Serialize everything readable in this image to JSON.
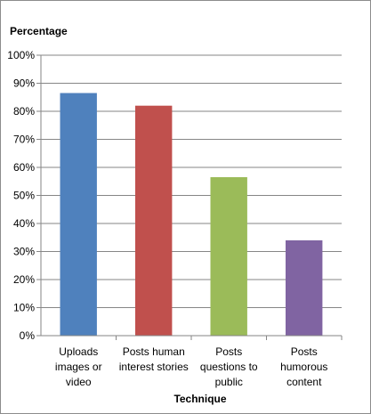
{
  "chart_data": {
    "type": "bar",
    "title": "",
    "ylabel": "Percentage",
    "xlabel": "Technique",
    "ylim": [
      0,
      100
    ],
    "y_ticks": [
      "0%",
      "10%",
      "20%",
      "30%",
      "40%",
      "50%",
      "60%",
      "70%",
      "80%",
      "90%",
      "100%"
    ],
    "categories": [
      [
        "Uploads",
        "images or",
        "video"
      ],
      [
        "Posts human",
        "interest stories"
      ],
      [
        "Posts",
        "questions to",
        "public"
      ],
      [
        "Posts",
        "humorous",
        "content"
      ]
    ],
    "values": [
      86.5,
      82,
      56.5,
      34
    ],
    "colors": [
      "#4f81bd",
      "#c0504d",
      "#9bbb59",
      "#8064a2"
    ],
    "grid": true,
    "legend": "none"
  }
}
